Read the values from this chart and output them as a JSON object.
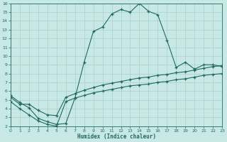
{
  "xlabel": "Humidex (Indice chaleur)",
  "bg_color": "#c8e8e5",
  "grid_color": "#9ecbc8",
  "line_color": "#1e6b5e",
  "xlim": [
    0,
    23
  ],
  "ylim": [
    2,
    16
  ],
  "xticks": [
    0,
    1,
    2,
    3,
    4,
    5,
    6,
    7,
    8,
    9,
    10,
    11,
    12,
    13,
    14,
    15,
    16,
    17,
    18,
    19,
    20,
    21,
    22,
    23
  ],
  "yticks": [
    2,
    3,
    4,
    5,
    6,
    7,
    8,
    9,
    10,
    11,
    12,
    13,
    14,
    15,
    16
  ],
  "line1_x": [
    0,
    1,
    2,
    3,
    4,
    5,
    6,
    7,
    8,
    9,
    10,
    11,
    12,
    13,
    14,
    15,
    16,
    17,
    18,
    19,
    20,
    21,
    22,
    23
  ],
  "line1_y": [
    5.5,
    4.7,
    4.1,
    2.9,
    2.5,
    2.2,
    2.3,
    5.2,
    9.3,
    12.8,
    13.3,
    14.8,
    15.3,
    15.0,
    16.0,
    15.1,
    14.7,
    11.8,
    8.7,
    9.3,
    8.5,
    9.0,
    9.0,
    8.8
  ],
  "line2_x": [
    0,
    1,
    2,
    3,
    4,
    5,
    6,
    7,
    8,
    9,
    10,
    11,
    12,
    13,
    14,
    15,
    16,
    17,
    18,
    19,
    20,
    21,
    22,
    23
  ],
  "line2_y": [
    5.3,
    4.5,
    4.5,
    3.8,
    3.3,
    3.2,
    5.3,
    5.7,
    6.1,
    6.4,
    6.7,
    6.9,
    7.1,
    7.3,
    7.5,
    7.6,
    7.8,
    7.9,
    8.1,
    8.2,
    8.4,
    8.6,
    8.8,
    8.9
  ],
  "line3_x": [
    0,
    1,
    2,
    3,
    4,
    5,
    6,
    7,
    8,
    9,
    10,
    11,
    12,
    13,
    14,
    15,
    16,
    17,
    18,
    19,
    20,
    21,
    22,
    23
  ],
  "line3_y": [
    4.8,
    4.0,
    3.3,
    2.6,
    2.2,
    2.0,
    4.8,
    5.2,
    5.5,
    5.8,
    6.0,
    6.2,
    6.4,
    6.6,
    6.7,
    6.8,
    7.0,
    7.1,
    7.3,
    7.4,
    7.6,
    7.8,
    7.9,
    8.0
  ],
  "marker": "+",
  "markersize": 3.5,
  "linewidth": 0.8
}
